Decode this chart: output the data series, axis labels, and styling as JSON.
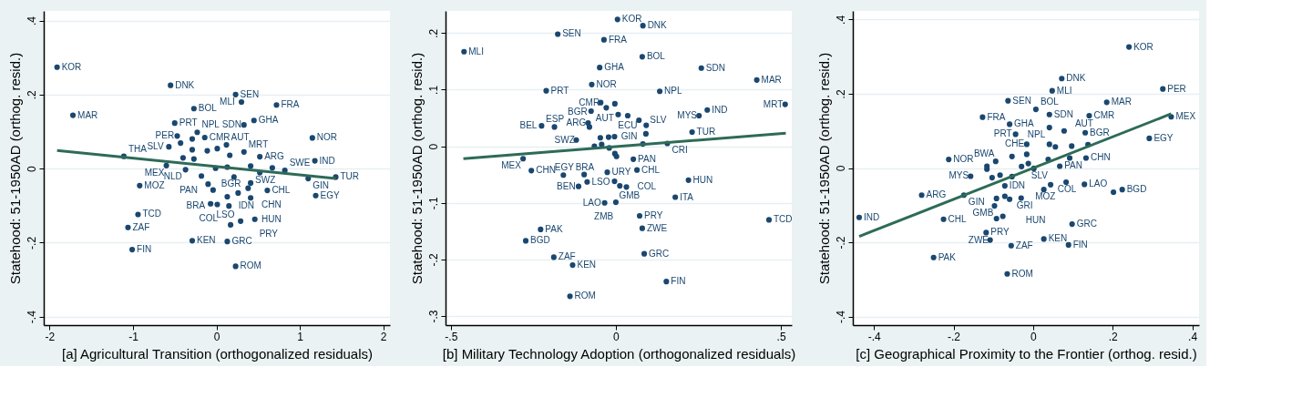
{
  "chart_data": [
    {
      "type": "scatter",
      "xlabel": "[a] Agricultural Transition (orthogonalized residuals)",
      "ylabel": "Statehood: 51-1950AD (orthog. resid.)",
      "xlim": [
        -2.07,
        2.08
      ],
      "ylim": [
        -0.423,
        0.426
      ],
      "xticks": [
        {
          "value": -2,
          "label": "-2"
        },
        {
          "value": -1,
          "label": "-1"
        },
        0,
        1,
        2
      ],
      "yticks": [
        {
          "value": -0.4,
          "label": "-.4"
        },
        {
          "value": -0.2,
          "label": "-.2"
        },
        {
          "value": 0,
          "label": "0"
        },
        {
          "value": 0.2,
          "label": ".2"
        },
        {
          "value": 0.4,
          "label": ".4"
        }
      ],
      "grid": "y",
      "series": [
        {
          "marker": "circle",
          "color": "#1a476f",
          "x": [
            -1.91,
            -0.55,
            0.23,
            0.3,
            0.72,
            -0.27,
            -1.72,
            -0.5,
            0.45,
            0.33,
            1.15,
            -0.23,
            -0.47,
            -0.29,
            -0.14,
            -0.43,
            -0.57,
            -0.29,
            -0.11,
            0.01,
            0.12,
            0.16,
            0.33,
            0.52,
            -1.11,
            1.18,
            -0.4,
            -0.27,
            0.41,
            0.67,
            0.82,
            -0.6,
            -0.37,
            -0.01,
            0.13,
            0.52,
            1.1,
            1.43,
            -0.18,
            0.21,
            -0.92,
            0.41,
            -0.1,
            -0.04,
            0.26,
            0.38,
            0.61,
            0.13,
            0.41,
            1.19,
            -0.07,
            0.01,
            0.15,
            -0.94,
            0.46,
            0.29,
            0.17,
            -1.06,
            -0.29,
            0.13,
            -1.01,
            0.23
          ],
          "values": [
            0.274,
            0.225,
            0.2,
            0.18,
            0.172,
            0.162,
            0.144,
            0.123,
            0.13,
            0.118,
            0.083,
            0.098,
            0.088,
            0.08,
            0.084,
            0.069,
            0.059,
            0.051,
            0.048,
            0.054,
            0.064,
            0.036,
            0.045,
            0.032,
            0.033,
            0.021,
            0.029,
            0.026,
            0.007,
            0.002,
            -0.005,
            0.008,
            -0.003,
            0.001,
            0.004,
            -0.011,
            -0.027,
            -0.023,
            -0.02,
            -0.023,
            -0.046,
            -0.039,
            -0.042,
            -0.058,
            -0.066,
            -0.053,
            -0.059,
            -0.076,
            -0.079,
            -0.073,
            -0.095,
            -0.097,
            -0.101,
            -0.124,
            -0.137,
            -0.142,
            -0.152,
            -0.159,
            -0.195,
            -0.197,
            -0.219,
            -0.264
          ]
        },
        {
          "type": "line",
          "color": "#2e6b57",
          "x": [
            -1.91,
            1.43
          ],
          "values": [
            0.049,
            -0.027
          ]
        }
      ],
      "annotations": [
        {
          "text": "KOR",
          "x": -1.91,
          "y": 0.274
        },
        {
          "text": "DNK",
          "x": -0.55,
          "y": 0.225
        },
        {
          "text": "SEN",
          "x": 0.23,
          "y": 0.2
        },
        {
          "text": "MLI",
          "x": 0.3,
          "y": 0.18
        },
        {
          "text": "FRA",
          "x": 0.72,
          "y": 0.172
        },
        {
          "text": "BOL",
          "x": -0.27,
          "y": 0.162
        },
        {
          "text": "MAR",
          "x": -1.72,
          "y": 0.144
        },
        {
          "text": "PRT",
          "x": -0.5,
          "y": 0.123
        },
        {
          "text": "GHA",
          "x": 0.45,
          "y": 0.13
        },
        {
          "text": "SDN",
          "x": 0.33,
          "y": 0.118
        },
        {
          "text": "NOR",
          "x": 1.15,
          "y": 0.083
        },
        {
          "text": "NPL",
          "x": -0.23,
          "y": 0.098
        },
        {
          "text": "PER",
          "x": -0.47,
          "y": 0.088
        },
        {
          "text": "CMR",
          "x": -0.14,
          "y": 0.084
        },
        {
          "text": "SLV",
          "x": -0.57,
          "y": 0.059
        },
        {
          "text": "AUT",
          "x": 0.12,
          "y": 0.064
        },
        {
          "text": "BGR",
          "x": 0.16,
          "y": 0.036
        },
        {
          "text": "MRT",
          "x": 0.33,
          "y": 0.045
        },
        {
          "text": "ARG",
          "x": 0.52,
          "y": 0.032
        },
        {
          "text": "THA",
          "x": -1.11,
          "y": 0.033
        },
        {
          "text": "IND",
          "x": 1.18,
          "y": 0.021
        },
        {
          "text": "SWZ",
          "x": 0.41,
          "y": 0.007
        },
        {
          "text": "SWE",
          "x": 0.82,
          "y": -0.005
        },
        {
          "text": "MEX",
          "x": -0.6,
          "y": 0.008
        },
        {
          "text": "NLD",
          "x": -0.37,
          "y": -0.003
        },
        {
          "text": "GIN",
          "x": 1.1,
          "y": -0.027
        },
        {
          "text": "TUR",
          "x": 1.43,
          "y": -0.023
        },
        {
          "text": "PAN",
          "x": -0.18,
          "y": -0.02
        },
        {
          "text": "IDN",
          "x": 0.21,
          "y": -0.023
        },
        {
          "text": "MOZ",
          "x": -0.92,
          "y": -0.046
        },
        {
          "text": "CHN",
          "x": 0.41,
          "y": -0.039
        },
        {
          "text": "BRA",
          "x": -0.1,
          "y": -0.042
        },
        {
          "text": "LSO",
          "x": 0.26,
          "y": -0.066
        },
        {
          "text": "CHL",
          "x": 0.61,
          "y": -0.059
        },
        {
          "text": "COL",
          "x": 0.13,
          "y": -0.076
        },
        {
          "text": "HUN",
          "x": 0.41,
          "y": -0.079
        },
        {
          "text": "EGY",
          "x": 1.19,
          "y": -0.073
        },
        {
          "text": "TCD",
          "x": -0.94,
          "y": -0.124
        },
        {
          "text": "PRY",
          "x": 0.46,
          "y": -0.137
        },
        {
          "text": "ZAF",
          "x": -1.06,
          "y": -0.159
        },
        {
          "text": "KEN",
          "x": -0.29,
          "y": -0.195
        },
        {
          "text": "GRC",
          "x": 0.13,
          "y": -0.197
        },
        {
          "text": "FIN",
          "x": -1.01,
          "y": -0.219
        },
        {
          "text": "ROM",
          "x": 0.23,
          "y": -0.264
        }
      ]
    },
    {
      "type": "scatter",
      "xlabel": "[b] Military Technology Adoption (orthogonalized residuals)",
      "ylabel": "Statehood: 51-1950AD (orthog. resid.)",
      "xlim": [
        -0.516,
        0.533
      ],
      "ylim": [
        -0.316,
        0.239
      ],
      "xticks": [
        {
          "value": -0.5,
          "label": "-.5"
        },
        0,
        {
          "value": 0.5,
          "label": ".5"
        }
      ],
      "yticks": [
        {
          "value": -0.3,
          "label": "-.3"
        },
        {
          "value": -0.2,
          "label": "-.2"
        },
        {
          "value": -0.1,
          "label": "-.1"
        },
        {
          "value": 0,
          "label": "0"
        },
        {
          "value": 0.1,
          "label": ".1"
        },
        {
          "value": 0.2,
          "label": ".2"
        }
      ],
      "grid": "y",
      "series": [
        {
          "marker": "circle",
          "color": "#1a476f",
          "x": [
            0.005,
            0.082,
            -0.176,
            -0.036,
            -0.46,
            0.08,
            -0.049,
            0.259,
            0.427,
            -0.073,
            -0.211,
            0.133,
            0.513,
            -0.046,
            -0.003,
            -0.029,
            -0.075,
            0.277,
            0.252,
            0.007,
            0.036,
            0.07,
            -0.084,
            0.092,
            -0.08,
            -0.225,
            -0.186,
            0.231,
            0.091,
            -0.12,
            -0.047,
            -0.022,
            -0.004,
            0.082,
            0.156,
            -0.065,
            -0.043,
            -0.02,
            -0.281,
            -0.003,
            0.002,
            0.053,
            -0.256,
            0.064,
            -0.159,
            -0.096,
            -0.026,
            -0.087,
            -0.004,
            0.22,
            -0.113,
            0.012,
            0.032,
            0.18,
            -0.034,
            0.0,
            0.072,
            0.464,
            0.08,
            -0.228,
            -0.273,
            0.086,
            -0.188,
            -0.131,
            0.153,
            -0.139
          ],
          "values": [
            0.224,
            0.213,
            0.198,
            0.188,
            0.167,
            0.158,
            0.139,
            0.138,
            0.117,
            0.109,
            0.098,
            0.097,
            0.074,
            0.077,
            0.075,
            0.068,
            0.062,
            0.064,
            0.054,
            0.056,
            0.054,
            0.046,
            0.041,
            0.037,
            0.034,
            0.036,
            0.034,
            0.025,
            0.022,
            0.011,
            0.015,
            0.016,
            0.017,
            0.004,
            0.005,
            0.0,
            0.003,
            -0.003,
            -0.022,
            -0.013,
            -0.018,
            -0.023,
            -0.043,
            -0.042,
            -0.051,
            -0.05,
            -0.046,
            -0.063,
            -0.062,
            -0.06,
            -0.071,
            -0.07,
            -0.072,
            -0.09,
            -0.1,
            -0.099,
            -0.123,
            -0.13,
            -0.145,
            -0.147,
            -0.167,
            -0.19,
            -0.196,
            -0.21,
            -0.239,
            -0.265
          ]
        },
        {
          "type": "line",
          "color": "#2e6b57",
          "x": [
            -0.462,
            0.515
          ],
          "values": [
            -0.022,
            0.023
          ]
        }
      ],
      "annotations": [
        {
          "text": "KOR",
          "x": 0.005,
          "y": 0.224
        },
        {
          "text": "DNK",
          "x": 0.082,
          "y": 0.213
        },
        {
          "text": "SEN",
          "x": -0.176,
          "y": 0.198
        },
        {
          "text": "FRA",
          "x": -0.036,
          "y": 0.188
        },
        {
          "text": "MLI",
          "x": -0.46,
          "y": 0.167
        },
        {
          "text": "BOL",
          "x": 0.08,
          "y": 0.158
        },
        {
          "text": "GHA",
          "x": -0.049,
          "y": 0.139
        },
        {
          "text": "SDN",
          "x": 0.259,
          "y": 0.138
        },
        {
          "text": "MAR",
          "x": 0.427,
          "y": 0.117
        },
        {
          "text": "NOR",
          "x": -0.073,
          "y": 0.109
        },
        {
          "text": "PRT",
          "x": -0.211,
          "y": 0.098
        },
        {
          "text": "NPL",
          "x": 0.133,
          "y": 0.097
        },
        {
          "text": "MRT",
          "x": 0.513,
          "y": 0.074
        },
        {
          "text": "CMR",
          "x": -0.046,
          "y": 0.077
        },
        {
          "text": "AUT",
          "x": -0.075,
          "y": 0.062
        },
        {
          "text": "IND",
          "x": 0.277,
          "y": 0.064
        },
        {
          "text": "MYS",
          "x": 0.252,
          "y": 0.054
        },
        {
          "text": "SLV",
          "x": 0.07,
          "y": 0.046
        },
        {
          "text": "ARG",
          "x": -0.084,
          "y": 0.041
        },
        {
          "text": "ECU",
          "x": 0.092,
          "y": 0.037
        },
        {
          "text": "BGR",
          "x": -0.08,
          "y": 0.034
        },
        {
          "text": "BEL",
          "x": -0.225,
          "y": 0.036
        },
        {
          "text": "ESP",
          "x": -0.186,
          "y": 0.034
        },
        {
          "text": "TUR",
          "x": 0.231,
          "y": 0.025
        },
        {
          "text": "SWZ",
          "x": -0.12,
          "y": 0.011
        },
        {
          "text": "GIN",
          "x": 0.082,
          "y": 0.004
        },
        {
          "text": "CRI",
          "x": 0.156,
          "y": 0.005
        },
        {
          "text": "MEX",
          "x": -0.281,
          "y": -0.022
        },
        {
          "text": "PAN",
          "x": 0.053,
          "y": -0.023
        },
        {
          "text": "CHN",
          "x": -0.256,
          "y": -0.043
        },
        {
          "text": "CHL",
          "x": 0.064,
          "y": -0.042
        },
        {
          "text": "EGY",
          "x": -0.159,
          "y": -0.051
        },
        {
          "text": "BRA",
          "x": -0.096,
          "y": -0.05
        },
        {
          "text": "URY",
          "x": -0.026,
          "y": -0.046
        },
        {
          "text": "LSO",
          "x": -0.087,
          "y": -0.063
        },
        {
          "text": "GMB",
          "x": -0.004,
          "y": -0.062
        },
        {
          "text": "HUN",
          "x": 0.22,
          "y": -0.06
        },
        {
          "text": "BEN",
          "x": -0.113,
          "y": -0.071
        },
        {
          "text": "COL",
          "x": 0.032,
          "y": -0.072
        },
        {
          "text": "ITA",
          "x": 0.18,
          "y": -0.09
        },
        {
          "text": "LAO",
          "x": -0.034,
          "y": -0.1
        },
        {
          "text": "ZMB",
          "x": 0.0,
          "y": -0.099
        },
        {
          "text": "PRY",
          "x": 0.072,
          "y": -0.123
        },
        {
          "text": "TCD",
          "x": 0.464,
          "y": -0.13
        },
        {
          "text": "ZWE",
          "x": 0.08,
          "y": -0.145
        },
        {
          "text": "PAK",
          "x": -0.228,
          "y": -0.147
        },
        {
          "text": "BGD",
          "x": -0.273,
          "y": -0.167
        },
        {
          "text": "GRC",
          "x": 0.086,
          "y": -0.19
        },
        {
          "text": "ZAF",
          "x": -0.188,
          "y": -0.196
        },
        {
          "text": "KEN",
          "x": -0.131,
          "y": -0.21
        },
        {
          "text": "FIN",
          "x": 0.153,
          "y": -0.239
        },
        {
          "text": "ROM",
          "x": -0.139,
          "y": -0.265
        }
      ]
    },
    {
      "type": "scatter",
      "xlabel": "[c] Geographical Proximity to the Frontier (orthog. resid.)",
      "ylabel": "Statehood: 51-1950AD (orthog. resid.)",
      "xlim": [
        -0.453,
        0.417
      ],
      "ylim": [
        -0.423,
        0.423
      ],
      "xticks": [
        {
          "value": -0.4,
          "label": "-.4"
        },
        {
          "value": -0.2,
          "label": "-.2"
        },
        0,
        {
          "value": 0.2,
          "label": ".2"
        },
        {
          "value": 0.4,
          "label": ".4"
        }
      ],
      "yticks": [
        {
          "value": -0.4,
          "label": "-.4"
        },
        {
          "value": -0.2,
          "label": "-.2"
        },
        {
          "value": 0,
          "label": "0"
        },
        {
          "value": 0.2,
          "label": ".2"
        },
        {
          "value": 0.4,
          "label": ".4"
        }
      ],
      "grid": "y",
      "series": [
        {
          "marker": "circle",
          "color": "#1a476f",
          "x": [
            0.241,
            0.072,
            0.326,
            0.048,
            -0.063,
            0.185,
            0.007,
            0.041,
            0.141,
            -0.127,
            0.347,
            -0.059,
            0.041,
            0.078,
            0.131,
            -0.044,
            0.292,
            -0.016,
            0.041,
            0.056,
            0.097,
            0.138,
            -0.053,
            -0.016,
            -0.212,
            -0.094,
            0.038,
            0.092,
            0.133,
            -0.116,
            -0.116,
            -0.029,
            -0.012,
            0.002,
            0.067,
            -0.157,
            -0.103,
            -0.083,
            -0.053,
            -0.071,
            0.044,
            0.083,
            0.129,
            0.027,
            0.202,
            0.224,
            -0.28,
            -0.174,
            -0.092,
            -0.071,
            -0.059,
            -0.03,
            -0.097,
            -0.437,
            -0.225,
            -0.076,
            -0.092,
            0.098,
            -0.118,
            -0.108,
            0.027,
            0.089,
            -0.055,
            -0.25,
            -0.065
          ],
          "values": [
            0.326,
            0.241,
            0.213,
            0.208,
            0.181,
            0.177,
            0.158,
            0.144,
            0.141,
            0.137,
            0.138,
            0.118,
            0.109,
            0.1,
            0.095,
            0.091,
            0.08,
            0.064,
            0.064,
            0.057,
            0.059,
            0.063,
            0.031,
            0.037,
            0.023,
            0.018,
            0.023,
            0.027,
            0.027,
            0.005,
            -0.003,
            0.004,
            0.012,
            -0.001,
            0.005,
            -0.022,
            -0.026,
            -0.019,
            -0.023,
            -0.048,
            -0.045,
            -0.038,
            -0.044,
            -0.058,
            -0.065,
            -0.058,
            -0.073,
            -0.073,
            -0.082,
            -0.076,
            -0.084,
            -0.081,
            -0.102,
            -0.133,
            -0.138,
            -0.13,
            -0.136,
            -0.151,
            -0.174,
            -0.194,
            -0.191,
            -0.207,
            -0.209,
            -0.241,
            -0.285
          ]
        },
        {
          "type": "line",
          "color": "#2e6b57",
          "x": [
            -0.437,
            0.347
          ],
          "values": [
            -0.184,
            0.146
          ]
        }
      ],
      "annotations": [
        {
          "text": "KOR",
          "x": 0.241,
          "y": 0.326
        },
        {
          "text": "DNK",
          "x": 0.072,
          "y": 0.241
        },
        {
          "text": "PER",
          "x": 0.326,
          "y": 0.213
        },
        {
          "text": "MLI",
          "x": 0.048,
          "y": 0.208
        },
        {
          "text": "SEN",
          "x": -0.063,
          "y": 0.181
        },
        {
          "text": "MAR",
          "x": 0.185,
          "y": 0.177
        },
        {
          "text": "BOL",
          "x": 0.007,
          "y": 0.158
        },
        {
          "text": "SDN",
          "x": 0.041,
          "y": 0.144
        },
        {
          "text": "CMR",
          "x": 0.141,
          "y": 0.141
        },
        {
          "text": "FRA",
          "x": -0.127,
          "y": 0.137
        },
        {
          "text": "MEX",
          "x": 0.347,
          "y": 0.138
        },
        {
          "text": "GHA",
          "x": -0.059,
          "y": 0.118
        },
        {
          "text": "NPL",
          "x": 0.041,
          "y": 0.109
        },
        {
          "text": "AUT",
          "x": 0.078,
          "y": 0.1
        },
        {
          "text": "BGR",
          "x": 0.131,
          "y": 0.095
        },
        {
          "text": "PRT",
          "x": -0.044,
          "y": 0.091
        },
        {
          "text": "EGY",
          "x": 0.292,
          "y": 0.08
        },
        {
          "text": "CHE",
          "x": -0.016,
          "y": 0.064
        },
        {
          "text": "SLV",
          "x": -0.016,
          "y": 0.037
        },
        {
          "text": "NOR",
          "x": -0.212,
          "y": 0.023
        },
        {
          "text": "BWA",
          "x": -0.094,
          "y": 0.018
        },
        {
          "text": "CHN",
          "x": 0.133,
          "y": 0.027
        },
        {
          "text": "PAN",
          "x": 0.067,
          "y": 0.005
        },
        {
          "text": "MYS",
          "x": -0.157,
          "y": -0.022
        },
        {
          "text": "GRI",
          "x": -0.053,
          "y": -0.023
        },
        {
          "text": "IDN",
          "x": -0.071,
          "y": -0.048
        },
        {
          "text": "COL",
          "x": 0.083,
          "y": -0.038
        },
        {
          "text": "LAO",
          "x": 0.129,
          "y": -0.044
        },
        {
          "text": "MOZ",
          "x": 0.027,
          "y": -0.058
        },
        {
          "text": "BGD",
          "x": 0.224,
          "y": -0.058
        },
        {
          "text": "ARG",
          "x": -0.28,
          "y": -0.073
        },
        {
          "text": "GIN",
          "x": -0.174,
          "y": -0.073
        },
        {
          "text": "HUN",
          "x": -0.03,
          "y": -0.081
        },
        {
          "text": "GMB",
          "x": -0.097,
          "y": -0.102
        },
        {
          "text": "IND",
          "x": -0.437,
          "y": -0.133
        },
        {
          "text": "CHL",
          "x": -0.225,
          "y": -0.138
        },
        {
          "text": "GRC",
          "x": 0.098,
          "y": -0.151
        },
        {
          "text": "PRY",
          "x": -0.118,
          "y": -0.174
        },
        {
          "text": "ZWE",
          "x": -0.108,
          "y": -0.194
        },
        {
          "text": "KEN",
          "x": 0.027,
          "y": -0.191
        },
        {
          "text": "FIN",
          "x": 0.089,
          "y": -0.207
        },
        {
          "text": "ZAF",
          "x": -0.055,
          "y": -0.209
        },
        {
          "text": "PAK",
          "x": -0.25,
          "y": -0.241
        },
        {
          "text": "ROM",
          "x": -0.065,
          "y": -0.285
        }
      ]
    }
  ]
}
